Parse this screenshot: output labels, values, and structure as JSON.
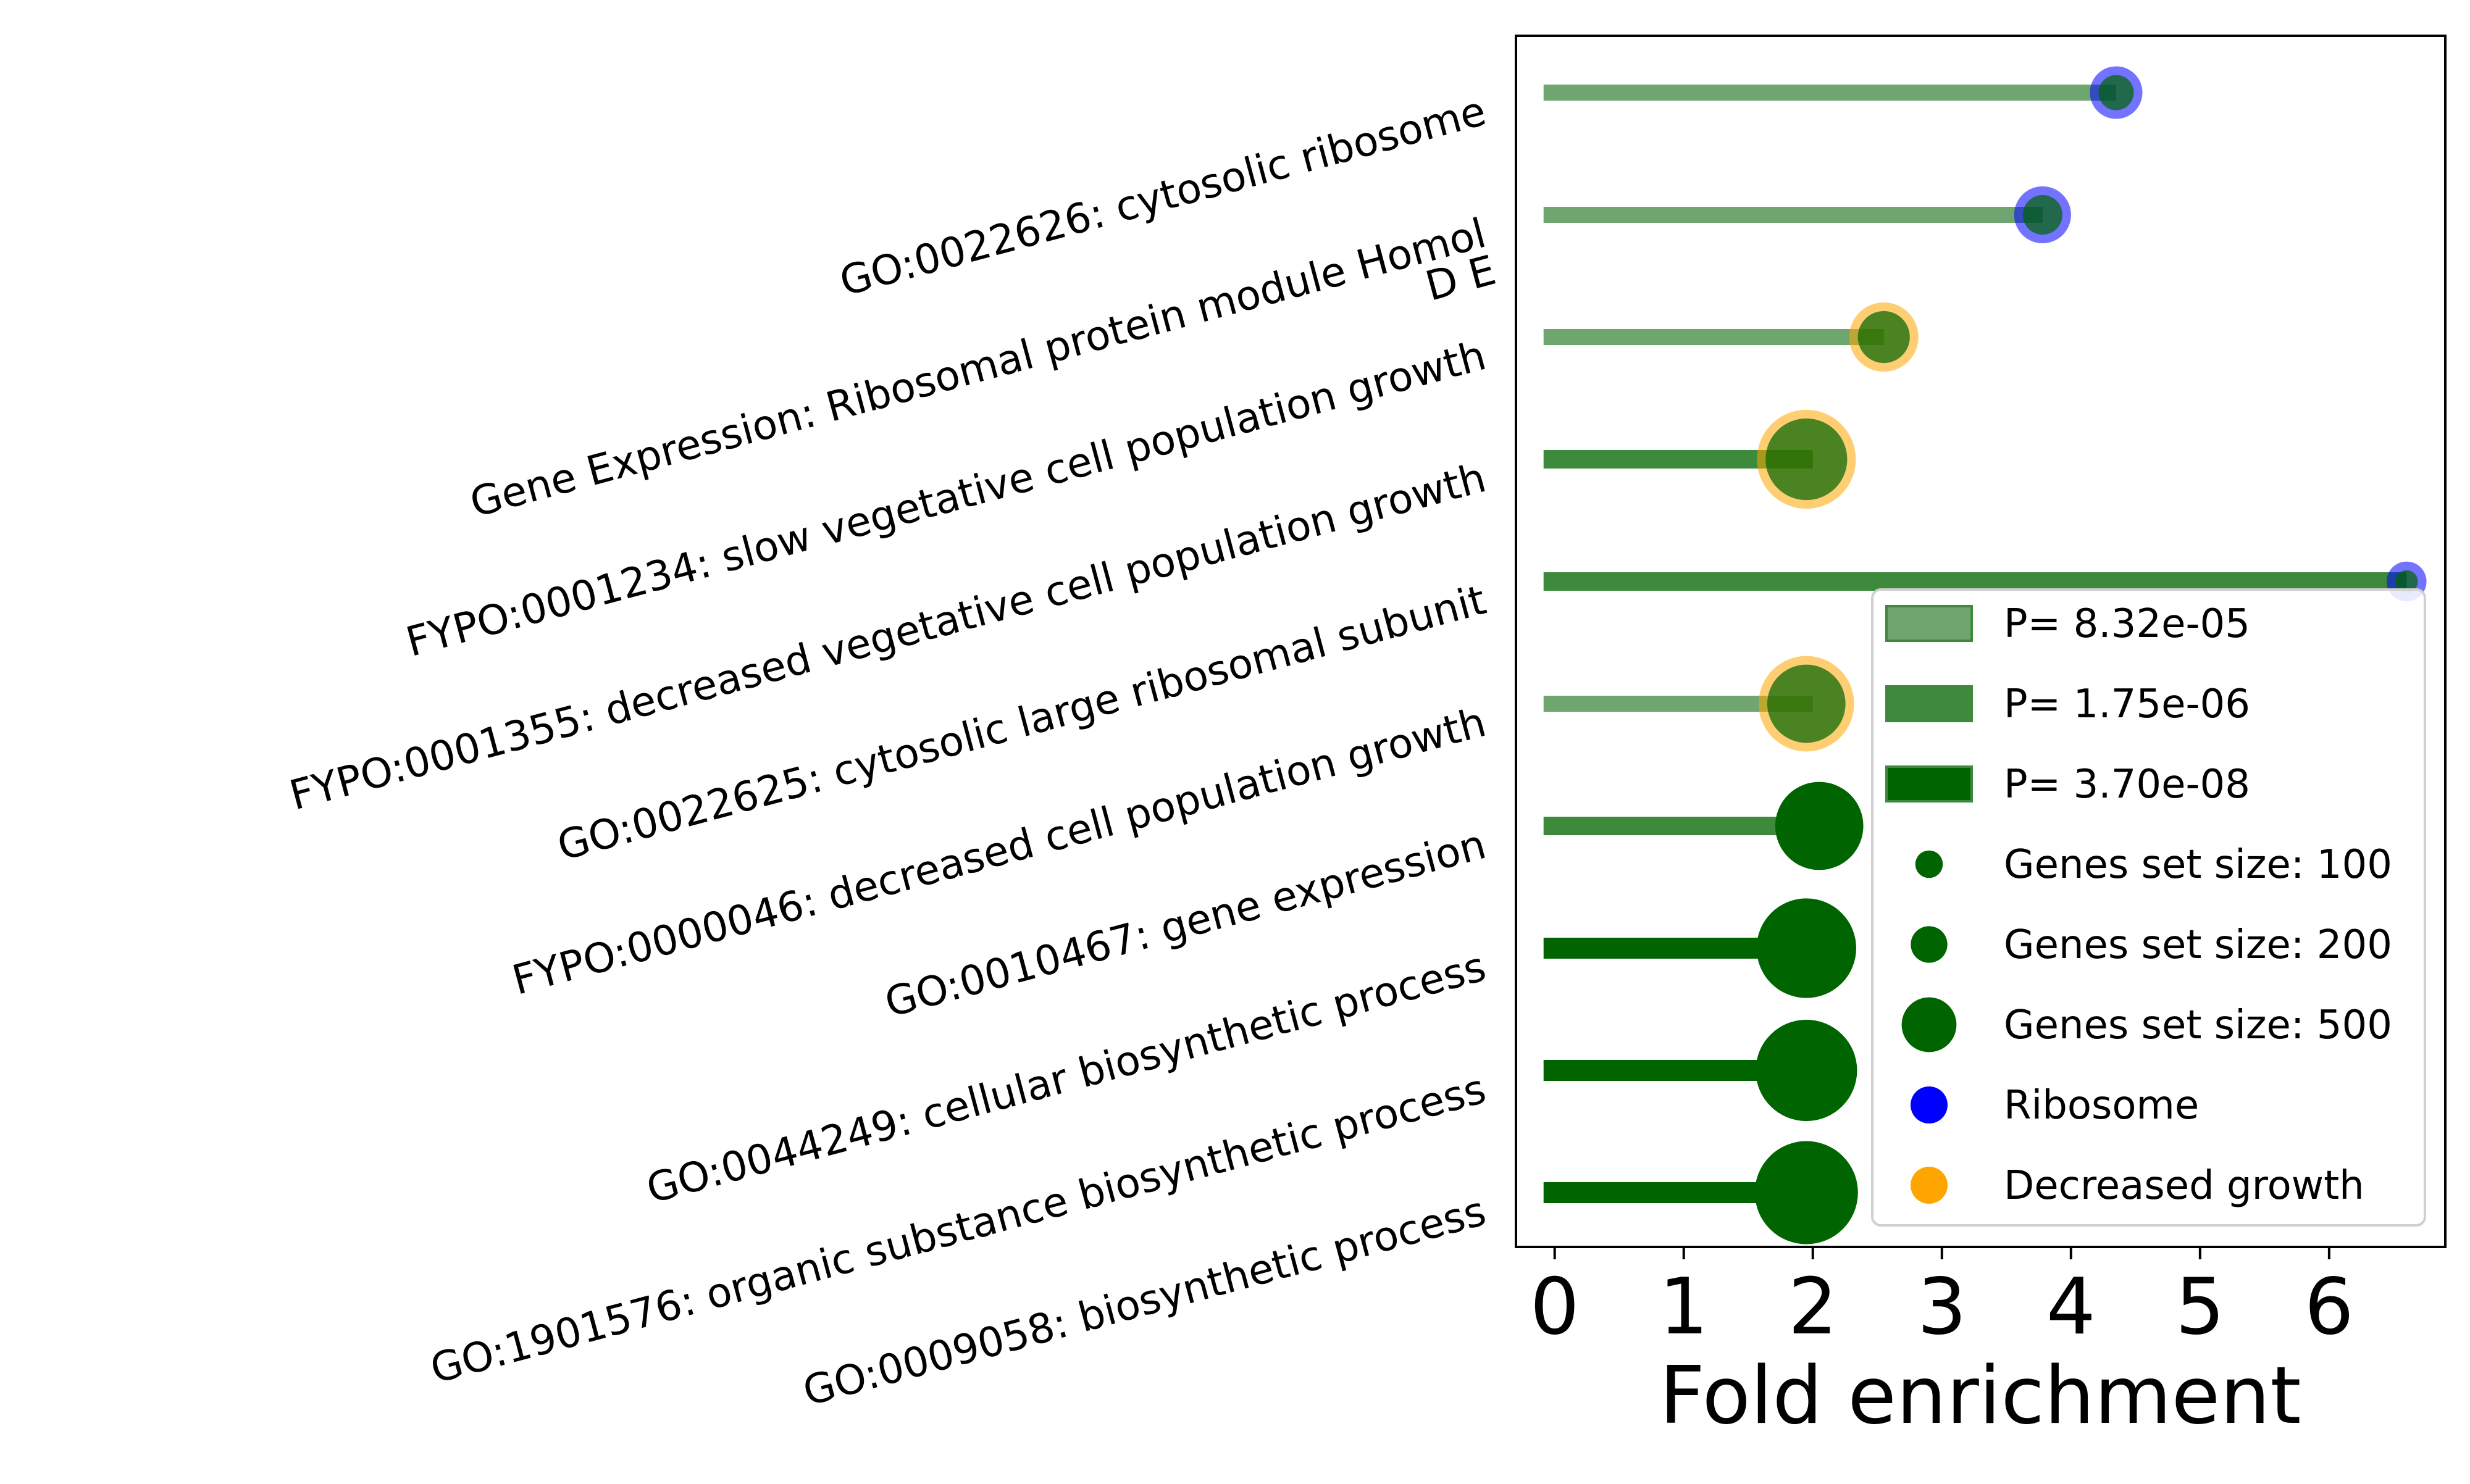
{
  "chart_data": {
    "type": "bar",
    "xlabel": "Fold enrichment",
    "ylabel": "",
    "xlim": [
      -0.3,
      6.9
    ],
    "xticks": [
      0,
      1,
      2,
      3,
      4,
      5,
      6
    ],
    "grid": false,
    "legend_placement": "lower right",
    "colors": {
      "bar_light": "#6fa66f",
      "bar_mid": "#3d8a3d",
      "bar_dark": "#006400",
      "dot": "#006400",
      "ribosome": "#0000ff",
      "decreased_growth": "#ffa500"
    },
    "categories": [
      "GO:0022626: cytosolic ribosome",
      "Gene Expression: Ribosomal protein module Homol\nD E",
      "FYPO:0001234: slow vegetative cell population growth",
      "FYPO:0001355: decreased vegetative cell population growth",
      "GO:0022625: cytosolic large ribosomal subunit",
      "FYPO:0000046: decreased cell population growth",
      "GO:0010467: gene expression",
      "GO:0044249: cellular biosynthetic process",
      "GO:1901576: organic substance biosynthetic process",
      "GO:0009058: biosynthetic process"
    ],
    "values": [
      4.35,
      3.78,
      2.55,
      2.0,
      6.6,
      2.0,
      2.08,
      2.0,
      2.0,
      2.0
    ],
    "p_level": [
      "light",
      "light",
      "light",
      "mid",
      "mid",
      "light",
      "mid",
      "dark",
      "dark",
      "dark"
    ],
    "dot_x": [
      4.35,
      3.78,
      2.55,
      1.95,
      6.6,
      1.95,
      2.05,
      1.95,
      1.95,
      1.95
    ],
    "gene_set_size": [
      40,
      55,
      110,
      320,
      10,
      290,
      380,
      500,
      520,
      540
    ],
    "category_color": [
      "ribosome",
      "ribosome",
      "decreased_growth",
      "decreased_growth",
      "ribosome",
      "decreased_growth",
      "none",
      "none",
      "none",
      "none"
    ],
    "legend": [
      {
        "kind": "patch",
        "level": "light",
        "label": "P= 8.32e-05"
      },
      {
        "kind": "patch",
        "level": "mid",
        "label": "P= 1.75e-06"
      },
      {
        "kind": "patch",
        "level": "dark",
        "label": "P= 3.70e-08"
      },
      {
        "kind": "size",
        "size": 100,
        "label": "Genes set size: 100"
      },
      {
        "kind": "size",
        "size": 200,
        "label": "Genes set size: 200"
      },
      {
        "kind": "size",
        "size": 500,
        "label": "Genes set size: 500"
      },
      {
        "kind": "color",
        "color": "ribosome",
        "label": "Ribosome"
      },
      {
        "kind": "color",
        "color": "decreased_growth",
        "label": "Decreased growth"
      }
    ]
  }
}
